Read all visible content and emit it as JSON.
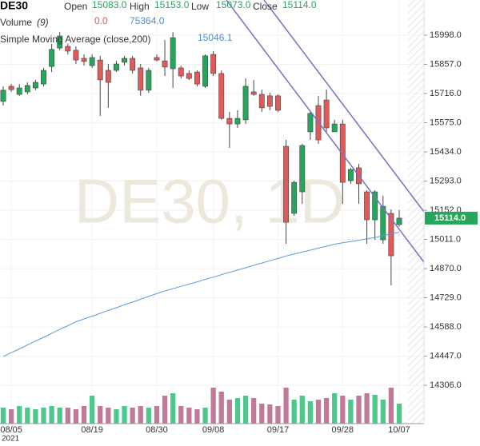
{
  "chart_data": {
    "type": "candlestick",
    "title": "DE30",
    "watermark": "DE30, 1D",
    "ohlc_labels": {
      "open": "Open",
      "high": "High",
      "low": "Low",
      "close": "Close"
    },
    "ohlc_values": {
      "open": "15083.0",
      "high": "15153.0",
      "low": "15073.0",
      "close": "15114.0"
    },
    "volume_label": "Volume",
    "volume_period": "(9)",
    "volume_values": [
      "0.0",
      "75364.0"
    ],
    "sma_label": "Simple Moving Average (close,200)",
    "sma_value": "15046.1",
    "last_price_label": {
      "value": 15114.0,
      "label": "15114.0"
    },
    "year_label": "2021",
    "categories": [
      null,
      "08/05",
      null,
      null,
      null,
      null,
      null,
      null,
      null,
      null,
      null,
      "08/19",
      null,
      null,
      null,
      null,
      null,
      null,
      null,
      "08/30",
      null,
      null,
      null,
      null,
      null,
      null,
      "09/08",
      null,
      null,
      null,
      null,
      null,
      null,
      null,
      "09/17",
      null,
      null,
      null,
      null,
      null,
      null,
      null,
      "09/28",
      null,
      null,
      null,
      null,
      null,
      null,
      "10/07"
    ],
    "open": [
      15678,
      15751,
      15712,
      15724,
      15743,
      15762,
      15847,
      15936,
      15944,
      15925,
      15886,
      15851,
      15878,
      15828,
      15828,
      15867,
      15886,
      15840,
      15732,
      15890,
      15874,
      15836,
      15840,
      15813,
      15820,
      15751,
      15905,
      15813,
      15596,
      15569,
      15589,
      15724,
      15712,
      15705,
      15705,
      15461,
      15137,
      15241,
      15531,
      15658,
      15685,
      15531,
      15569,
      15295,
      15357,
      15241,
      15106,
      15009,
      15137,
      15083
    ],
    "high": [
      15751,
      15762,
      15762,
      15770,
      15782,
      15840,
      15956,
      16013,
      15956,
      15944,
      15905,
      15905,
      15898,
      15859,
      15874,
      15898,
      15898,
      15859,
      15840,
      15905,
      15975,
      16013,
      15851,
      15828,
      15828,
      15905,
      15921,
      15828,
      15627,
      15635,
      15789,
      15782,
      15735,
      15720,
      15712,
      15492,
      15295,
      15473,
      15627,
      15705,
      15735,
      15589,
      15589,
      15357,
      15376,
      15249,
      15249,
      15222,
      15156,
      15153
    ],
    "low": [
      15658,
      15724,
      15705,
      15712,
      15732,
      15751,
      15820,
      15925,
      15905,
      15859,
      15851,
      15840,
      15608,
      15647,
      15820,
      15851,
      15813,
      15705,
      15720,
      15871,
      15801,
      15743,
      15789,
      15782,
      15751,
      15743,
      15801,
      15589,
      15453,
      15550,
      15569,
      15705,
      15627,
      15635,
      15627,
      14990,
      15125,
      15183,
      15492,
      15473,
      15531,
      15531,
      15183,
      15280,
      15183,
      14990,
      15009,
      14990,
      14789,
      15073
    ],
    "close": [
      15732,
      15735,
      15743,
      15755,
      15770,
      15828,
      15929,
      15994,
      15921,
      15878,
      15871,
      15890,
      15782,
      15770,
      15859,
      15886,
      15828,
      15732,
      15828,
      15878,
      15844,
      15986,
      15801,
      15789,
      15762,
      15898,
      15813,
      15596,
      15569,
      15596,
      15751,
      15712,
      15647,
      15654,
      15635,
      15094,
      15287,
      15465,
      15620,
      15492,
      15550,
      15569,
      15287,
      15349,
      15280,
      15106,
      15241,
      15171,
      14932,
      15114
    ],
    "up_color": "#26a65b",
    "down_color": "#e05a5a",
    "sma": {
      "color": "#5b9bd5",
      "values": [
        14445,
        14464,
        14482,
        14501,
        14520,
        14538,
        14557,
        14576,
        14594,
        14613,
        14627,
        14640,
        14654,
        14668,
        14681,
        14695,
        14708,
        14722,
        14736,
        14749,
        14762,
        14773,
        14784,
        14795,
        14806,
        14818,
        14829,
        14841,
        14852,
        14863,
        14874,
        14886,
        14897,
        14908,
        14919,
        14931,
        14940,
        14950,
        14959,
        14969,
        14978,
        14988,
        14995,
        15001,
        15007,
        15014,
        15020,
        15029,
        15038,
        15046.1
      ]
    },
    "volume": [
      40000,
      36000,
      44000,
      40000,
      36000,
      40000,
      44000,
      40000,
      40000,
      36000,
      44000,
      70000,
      44000,
      40000,
      36000,
      44000,
      40000,
      44000,
      40000,
      44000,
      70000,
      76000,
      44000,
      40000,
      36000,
      40000,
      90000,
      80000,
      60000,
      64000,
      70000,
      64000,
      50000,
      48000,
      44000,
      90000,
      60000,
      70000,
      56000,
      60000,
      64000,
      76000,
      70000,
      60000,
      70000,
      76000,
      72000,
      60000,
      90000,
      50000
    ],
    "volume_up_color": "#4cc98a",
    "volume_down_color": "#c07a98",
    "volume_ylim": [
      0,
      100000
    ],
    "ylim": [
      14121,
      16168
    ],
    "yticks": [
      {
        "value": 14306,
        "label": "14306.0"
      },
      {
        "value": 14447,
        "label": "14447.0"
      },
      {
        "value": 14588,
        "label": "14588.0"
      },
      {
        "value": 14729,
        "label": "14729.0"
      },
      {
        "value": 14870,
        "label": "14870.0"
      },
      {
        "value": 15011,
        "label": "15011.0"
      },
      {
        "value": 15152,
        "label": "15152.0"
      },
      {
        "value": 15293,
        "label": "15293.0"
      },
      {
        "value": 15434,
        "label": "15434.0"
      },
      {
        "value": 15575,
        "label": "15575.0"
      },
      {
        "value": 15716,
        "label": "15716.0"
      },
      {
        "value": 15857,
        "label": "15857.0"
      },
      {
        "value": 15998,
        "label": "15998.0"
      }
    ],
    "grid": true
  }
}
